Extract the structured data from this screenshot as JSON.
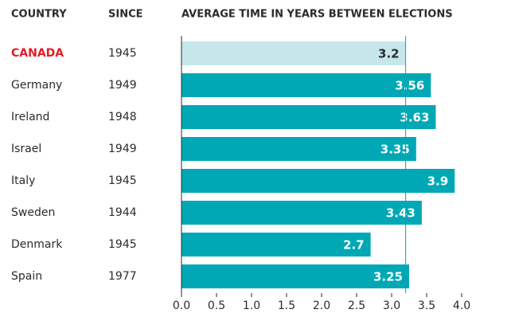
{
  "chart_data": {
    "type": "bar",
    "orientation": "horizontal",
    "country_header": "COUNTRY",
    "since_header": "SINCE",
    "title": "AVERAGE TIME IN YEARS BETWEEN ELECTIONS",
    "categories": [
      "CANADA",
      "Germany",
      "Ireland",
      "Israel",
      "Italy",
      "Sweden",
      "Denmark",
      "Spain"
    ],
    "since": [
      1945,
      1949,
      1948,
      1949,
      1945,
      1944,
      1945,
      1977
    ],
    "values": [
      3.2,
      3.56,
      3.63,
      3.35,
      3.9,
      3.43,
      2.7,
      3.25
    ],
    "colors": [
      "#c6e6ec",
      "#00a8b5",
      "#00a8b5",
      "#00a8b5",
      "#00a8b5",
      "#00a8b5",
      "#00a8b5",
      "#00a8b5"
    ],
    "label_colors": [
      "#e31b23",
      "#2b2b2b",
      "#2b2b2b",
      "#2b2b2b",
      "#2b2b2b",
      "#2b2b2b",
      "#2b2b2b",
      "#2b2b2b"
    ],
    "xlim": [
      0,
      4
    ],
    "xticks": [
      {
        "value": 0,
        "label": "0.0"
      },
      0.5,
      {
        "value": 1,
        "label": "1.0"
      },
      1.5,
      {
        "value": 2,
        "label": "2.0"
      },
      2.5,
      {
        "value": 3,
        "label": "3.0"
      },
      3.5,
      {
        "value": 4,
        "label": "4.0"
      }
    ],
    "reference_line": "chart_data.values.0"
  }
}
